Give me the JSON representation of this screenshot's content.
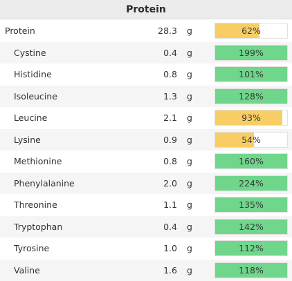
{
  "title": "Protein",
  "colors": {
    "met": "#6fd68c",
    "partial": "#f7cd64"
  },
  "rows": [
    {
      "name": "Protein",
      "amount": "28.3",
      "unit": "g",
      "pct_label": "62%",
      "pct": 62,
      "top": true
    },
    {
      "name": "Cystine",
      "amount": "0.4",
      "unit": "g",
      "pct_label": "199%",
      "pct": 199
    },
    {
      "name": "Histidine",
      "amount": "0.8",
      "unit": "g",
      "pct_label": "101%",
      "pct": 101
    },
    {
      "name": "Isoleucine",
      "amount": "1.3",
      "unit": "g",
      "pct_label": "128%",
      "pct": 128
    },
    {
      "name": "Leucine",
      "amount": "2.1",
      "unit": "g",
      "pct_label": "93%",
      "pct": 93
    },
    {
      "name": "Lysine",
      "amount": "0.9",
      "unit": "g",
      "pct_label": "54%",
      "pct": 54
    },
    {
      "name": "Methionine",
      "amount": "0.8",
      "unit": "g",
      "pct_label": "160%",
      "pct": 160
    },
    {
      "name": "Phenylalanine",
      "amount": "2.0",
      "unit": "g",
      "pct_label": "224%",
      "pct": 224
    },
    {
      "name": "Threonine",
      "amount": "1.1",
      "unit": "g",
      "pct_label": "135%",
      "pct": 135
    },
    {
      "name": "Tryptophan",
      "amount": "0.4",
      "unit": "g",
      "pct_label": "142%",
      "pct": 142
    },
    {
      "name": "Tyrosine",
      "amount": "1.0",
      "unit": "g",
      "pct_label": "112%",
      "pct": 112
    },
    {
      "name": "Valine",
      "amount": "1.6",
      "unit": "g",
      "pct_label": "118%",
      "pct": 118
    }
  ]
}
